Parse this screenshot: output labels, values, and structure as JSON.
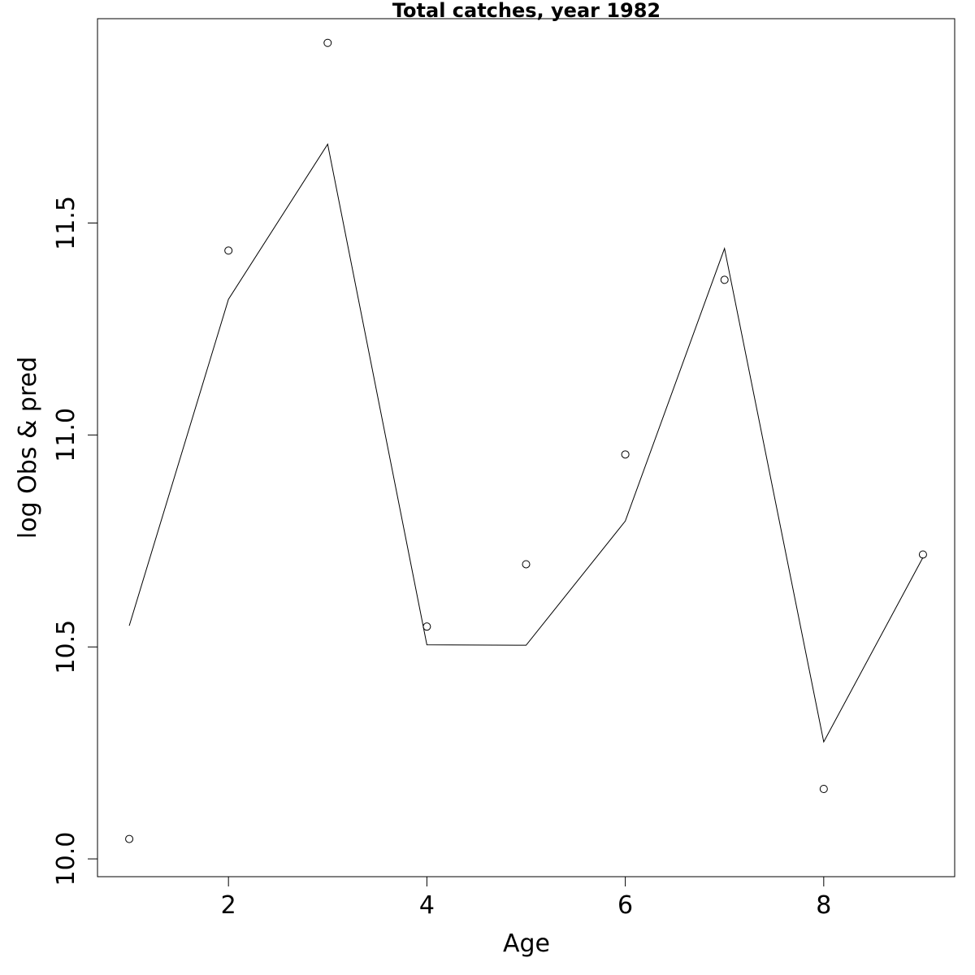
{
  "chart_data": {
    "type": "line",
    "title": "Total catches, year 1982",
    "xlabel": "Age",
    "ylabel": "log Obs & pred",
    "xlim": [
      0.68,
      9.32
    ],
    "ylim": [
      9.958,
      11.982
    ],
    "xticks": [
      2,
      4,
      6,
      8
    ],
    "xtick_labels": [
      "2",
      "4",
      "6",
      "8"
    ],
    "yticks": [
      10.0,
      10.5,
      11.0,
      11.5
    ],
    "ytick_labels": [
      "10.0",
      "10.5",
      "11.0",
      "11.5"
    ],
    "grid": false,
    "legend": "none",
    "series": [
      {
        "style": "points-open-circle",
        "x": [
          1,
          2,
          3,
          4,
          5,
          6,
          7,
          8,
          9
        ],
        "y": [
          10.047,
          11.435,
          11.925,
          10.548,
          10.695,
          10.954,
          11.366,
          10.165,
          10.718
        ]
      },
      {
        "style": "line",
        "x": [
          1,
          2,
          3,
          4,
          5,
          6,
          7,
          8,
          9
        ],
        "y": [
          10.55,
          11.32,
          11.686,
          10.505,
          10.504,
          10.797,
          11.44,
          10.276,
          10.711
        ]
      }
    ],
    "colors": {
      "line": "#000000",
      "points": "#000000",
      "axes": "#000000"
    }
  }
}
